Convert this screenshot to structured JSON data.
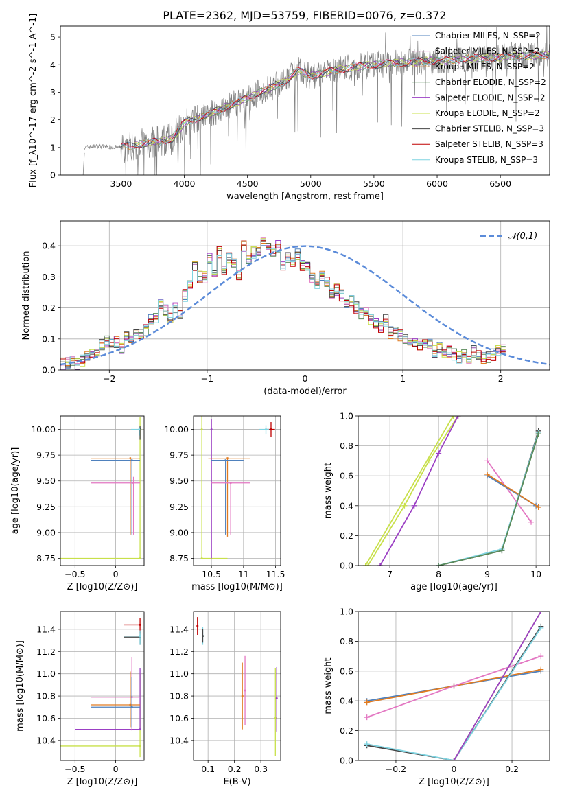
{
  "figure": {
    "title": "PLATE=2362, MJD=53759, FIBERID=0076, z=0.372",
    "colors": {
      "chabrier_miles": "#4f81bd",
      "salpeter_miles": "#e377c2",
      "kroupa_miles": "#e07b20",
      "chabrier_elodie": "#5a8a5a",
      "salpeter_elodie": "#9b3fc4",
      "kroupa_elodie": "#c8e04a",
      "chabrier_stelib": "#444444",
      "salpeter_stelib": "#c00000",
      "kroupa_stelib": "#7fd3e0",
      "gaussian": "#5b8bd9",
      "observed": "#808080"
    }
  },
  "chart_data": [
    {
      "id": "spectrum",
      "type": "line",
      "xlabel": "wavelength [Angstrom, rest frame]",
      "ylabel": "Flux [f_λ10^-17 erg cm^-2 s^-1 A^-1]",
      "xlim": [
        3020,
        6890
      ],
      "ylim": [
        0,
        5.4
      ],
      "xticks": [
        3500,
        4000,
        4500,
        5000,
        5500,
        6000,
        6500
      ],
      "yticks": [
        0,
        1,
        2,
        3,
        4,
        5
      ],
      "grid": false,
      "legend_position": "top-right",
      "legend": [
        "Chabrier MILES, N_SSP=2",
        "Salpeter MILES, N_SSP=2",
        "Kroupa MILES, N_SSP=2",
        "Chabrier ELODIE, N_SSP=2",
        "Salpeter ELODIE, N_SSP=2",
        "Kroupa ELODIE, N_SSP=2",
        "Chabrier STELIB, N_SSP=3",
        "Salpeter STELIB, N_SSP=3",
        "Kroupa STELIB, N_SSP=3"
      ],
      "model_continuum": {
        "x": [
          3210,
          3300,
          3500,
          3700,
          3900,
          4000,
          4200,
          4400,
          4600,
          4800,
          4900,
          5000,
          5200,
          5400,
          5600,
          5800,
          6000,
          6200,
          6400,
          6600,
          6890
        ],
        "y": [
          1.0,
          1.05,
          1.0,
          1.15,
          1.3,
          1.9,
          2.2,
          2.6,
          3.0,
          3.4,
          3.8,
          3.6,
          3.8,
          3.95,
          4.05,
          4.1,
          4.15,
          4.2,
          4.25,
          4.3,
          4.35
        ]
      }
    },
    {
      "id": "residuals",
      "type": "line",
      "xlabel": "(data-model)/error",
      "ylabel": "Normed distribution",
      "xlim": [
        -2.5,
        2.5
      ],
      "ylim": [
        0,
        0.48
      ],
      "xticks": [
        -2,
        -1,
        0,
        1,
        2
      ],
      "yticks": [
        0.0,
        0.1,
        0.2,
        0.3,
        0.4
      ],
      "grid": true,
      "legend_position": "top-right",
      "legend": [
        "𝒩(0,1)"
      ],
      "bin_width": 0.1,
      "hist_base": [
        0.02,
        0.025,
        0.03,
        0.02,
        0.03,
        0.04,
        0.05,
        0.06,
        0.08,
        0.09,
        0.08,
        0.09,
        0.07,
        0.11,
        0.1,
        0.12,
        0.12,
        0.13,
        0.16,
        0.17,
        0.21,
        0.19,
        0.17,
        0.2,
        0.18,
        0.24,
        0.28,
        0.33,
        0.3,
        0.3,
        0.36,
        0.31,
        0.38,
        0.32,
        0.36,
        0.34,
        0.31,
        0.4,
        0.36,
        0.38,
        0.38,
        0.41,
        0.39,
        0.38,
        0.4,
        0.34,
        0.36,
        0.35,
        0.37,
        0.34,
        0.33,
        0.3,
        0.28,
        0.3,
        0.28,
        0.25,
        0.26,
        0.24,
        0.22,
        0.22,
        0.2,
        0.18,
        0.19,
        0.16,
        0.15,
        0.14,
        0.16,
        0.12,
        0.12,
        0.11,
        0.1,
        0.1,
        0.09,
        0.08,
        0.09,
        0.08,
        0.06,
        0.07,
        0.06,
        0.06,
        0.05,
        0.04,
        0.05,
        0.04,
        0.06,
        0.05,
        0.04,
        0.04,
        0.05,
        0.06,
        0.07
      ]
    },
    {
      "id": "age_vs_Z",
      "type": "scatter",
      "xlabel": "Z [log10(Z/Z⊙)]",
      "ylabel": "age [log10(age/yr)]",
      "xlim": [
        -0.68,
        0.35
      ],
      "ylim": [
        8.68,
        10.13
      ],
      "xticks": [
        -0.5,
        0.0
      ],
      "yticks": [
        8.75,
        9.0,
        9.25,
        9.5,
        9.75,
        10.0
      ],
      "grid": true,
      "points": [
        {
          "series": "kroupa_elodie",
          "x": 0.3,
          "y": 10.0,
          "xerr": [
            0.0,
            0.02
          ],
          "yerr": [
            1.25,
            0.12
          ]
        },
        {
          "series": "kroupa_elodie",
          "x": 0.3,
          "y": 8.75,
          "xerr": [
            0.98,
            0.0
          ],
          "yerr": [
            0.0,
            0.0
          ]
        },
        {
          "series": "chabrier_miles",
          "x": 0.2,
          "y": 9.7,
          "xerr": [
            0.5,
            0.1
          ],
          "yerr": [
            0.72,
            0.0
          ]
        },
        {
          "series": "kroupa_miles",
          "x": 0.18,
          "y": 9.72,
          "xerr": [
            0.48,
            0.12
          ],
          "yerr": [
            0.74,
            0.0
          ]
        },
        {
          "series": "salpeter_miles",
          "x": 0.22,
          "y": 9.48,
          "xerr": [
            0.52,
            0.08
          ],
          "yerr": [
            0.5,
            0.06
          ]
        },
        {
          "series": "chabrier_stelib",
          "x": 0.3,
          "y": 10.0,
          "xerr": [
            0.01,
            0.01
          ],
          "yerr": [
            0.1,
            0.03
          ]
        },
        {
          "series": "kroupa_stelib",
          "x": 0.29,
          "y": 10.0,
          "xerr": [
            0.1,
            0.0
          ],
          "yerr": [
            0.06,
            0.02
          ]
        }
      ]
    },
    {
      "id": "age_vs_mass",
      "type": "scatter",
      "xlabel": "mass [log10(M/M⊙)]",
      "ylabel": "",
      "xlim": [
        10.22,
        11.58
      ],
      "ylim": [
        8.68,
        10.13
      ],
      "xticks": [
        10.5,
        11.0,
        11.5
      ],
      "yticks": [
        8.75,
        9.0,
        9.25,
        9.5,
        9.75,
        10.0
      ],
      "grid": true,
      "points": [
        {
          "series": "kroupa_elodie",
          "x": 10.35,
          "y": 10.0,
          "xerr": [
            0.0,
            0.0
          ],
          "yerr": [
            1.25,
            0.13
          ]
        },
        {
          "series": "kroupa_elodie",
          "x": 10.35,
          "y": 8.75,
          "xerr": [
            0.0,
            0.4
          ],
          "yerr": [
            0.0,
            0.0
          ]
        },
        {
          "series": "salpeter_elodie",
          "x": 10.5,
          "y": 10.0,
          "xerr": [
            0.0,
            0.0
          ],
          "yerr": [
            1.25,
            0.1
          ]
        },
        {
          "series": "kroupa_miles",
          "x": 10.75,
          "y": 9.72,
          "xerr": [
            0.3,
            0.35
          ],
          "yerr": [
            0.76,
            0.0
          ]
        },
        {
          "series": "chabrier_miles",
          "x": 10.72,
          "y": 9.7,
          "xerr": [
            0.22,
            0.28
          ],
          "yerr": [
            0.72,
            0.0
          ]
        },
        {
          "series": "salpeter_miles",
          "x": 10.8,
          "y": 9.48,
          "xerr": [
            0.3,
            0.3
          ],
          "yerr": [
            0.5,
            0.0
          ]
        },
        {
          "series": "salpeter_stelib",
          "x": 11.43,
          "y": 10.0,
          "xerr": [
            0.08,
            0.06
          ],
          "yerr": [
            0.07,
            0.07
          ]
        },
        {
          "series": "kroupa_stelib",
          "x": 11.35,
          "y": 10.0,
          "xerr": [
            0.1,
            0.05
          ],
          "yerr": [
            0.05,
            0.04
          ]
        }
      ]
    },
    {
      "id": "mass_weight_vs_age",
      "type": "line",
      "xlabel": "age [log10(age/yr)]",
      "ylabel": "mass weight",
      "xlim": [
        6.35,
        10.28
      ],
      "ylim": [
        0.0,
        1.0
      ],
      "xticks": [
        7,
        8,
        9,
        10
      ],
      "yticks": [
        0.0,
        0.2,
        0.4,
        0.6,
        0.8,
        1.0
      ],
      "grid": true,
      "series": [
        {
          "key": "kroupa_elodie",
          "x": [
            6.55,
            7.3,
            7.8,
            8.4
          ],
          "y": [
            0.0,
            0.4,
            0.7,
            1.0
          ]
        },
        {
          "key": "salpeter_elodie",
          "x": [
            6.8,
            7.5,
            8.0,
            8.4
          ],
          "y": [
            0.0,
            0.4,
            0.75,
            1.0
          ]
        },
        {
          "key": "kroupa_elodie",
          "x": [
            6.5,
            8.3
          ],
          "y": [
            0.0,
            1.0
          ]
        },
        {
          "key": "salpeter_miles",
          "x": [
            9.0,
            9.9
          ],
          "y": [
            0.7,
            0.29
          ]
        },
        {
          "key": "chabrier_miles",
          "x": [
            9.0,
            10.0
          ],
          "y": [
            0.6,
            0.4
          ]
        },
        {
          "key": "kroupa_miles",
          "x": [
            9.0,
            10.05
          ],
          "y": [
            0.61,
            0.39
          ]
        },
        {
          "key": "chabrier_stelib",
          "x": [
            8.0,
            9.3,
            10.05
          ],
          "y": [
            0.0,
            0.1,
            0.9
          ]
        },
        {
          "key": "kroupa_stelib",
          "x": [
            8.0,
            9.3,
            10.05
          ],
          "y": [
            0.0,
            0.11,
            0.89
          ]
        },
        {
          "key": "chabrier_elodie",
          "x": [
            8.0,
            9.3,
            10.05
          ],
          "y": [
            0.0,
            0.1,
            0.88
          ]
        }
      ]
    },
    {
      "id": "mass_vs_Z",
      "type": "scatter",
      "xlabel": "Z [log10(Z/Z⊙)]",
      "ylabel": "mass [log10(M/M⊙)]",
      "xlim": [
        -0.68,
        0.35
      ],
      "ylim": [
        10.22,
        11.56
      ],
      "xticks": [
        -0.5,
        0.0
      ],
      "yticks": [
        10.4,
        10.6,
        10.8,
        11.0,
        11.2,
        11.4
      ],
      "grid": true,
      "points": [
        {
          "series": "salpeter_stelib",
          "x": 0.3,
          "y": 11.44,
          "xerr": [
            0.2,
            0.0
          ],
          "yerr": [
            0.08,
            0.06
          ]
        },
        {
          "series": "chabrier_stelib",
          "x": 0.3,
          "y": 11.33,
          "xerr": [
            0.2,
            0.0
          ],
          "yerr": [
            0.07,
            0.05
          ]
        },
        {
          "series": "kroupa_stelib",
          "x": 0.3,
          "y": 11.34,
          "xerr": [
            0.2,
            0.0
          ],
          "yerr": [
            0.08,
            0.05
          ]
        },
        {
          "series": "kroupa_elodie",
          "x": 0.3,
          "y": 10.35,
          "xerr": [
            0.98,
            0.0
          ],
          "yerr": [
            0.1,
            0.65
          ]
        },
        {
          "series": "salpeter_elodie",
          "x": 0.3,
          "y": 10.5,
          "xerr": [
            0.8,
            0.0
          ],
          "yerr": [
            0.0,
            0.55
          ]
        },
        {
          "series": "salpeter_miles",
          "x": 0.2,
          "y": 10.79,
          "xerr": [
            0.5,
            0.1
          ],
          "yerr": [
            0.3,
            0.36
          ]
        },
        {
          "series": "kroupa_miles",
          "x": 0.18,
          "y": 10.72,
          "xerr": [
            0.48,
            0.12
          ],
          "yerr": [
            0.2,
            0.3
          ]
        },
        {
          "series": "chabrier_miles",
          "x": 0.2,
          "y": 10.7,
          "xerr": [
            0.5,
            0.1
          ],
          "yerr": [
            0.18,
            0.27
          ]
        }
      ]
    },
    {
      "id": "mass_vs_ebv",
      "type": "scatter",
      "xlabel": "E(B-V)",
      "ylabel": "",
      "xlim": [
        0.045,
        0.375
      ],
      "ylim": [
        10.22,
        11.56
      ],
      "xticks": [
        0.1,
        0.2,
        0.3
      ],
      "yticks": [
        10.4,
        10.6,
        10.8,
        11.0,
        11.2,
        11.4
      ],
      "grid": true,
      "points": [
        {
          "series": "salpeter_stelib",
          "x": 0.06,
          "y": 11.43,
          "yerr": [
            0.08,
            0.08
          ]
        },
        {
          "series": "kroupa_stelib",
          "x": 0.08,
          "y": 11.34,
          "yerr": [
            0.08,
            0.08
          ]
        },
        {
          "series": "chabrier_stelib",
          "x": 0.08,
          "y": 11.34,
          "yerr": [
            0.06,
            0.06
          ]
        },
        {
          "series": "salpeter_miles",
          "x": 0.24,
          "y": 10.85,
          "yerr": [
            0.31,
            0.31
          ]
        },
        {
          "series": "kroupa_miles",
          "x": 0.23,
          "y": 10.8,
          "yerr": [
            0.3,
            0.3
          ]
        },
        {
          "series": "kroupa_elodie",
          "x": 0.355,
          "y": 10.6,
          "yerr": [
            0.34,
            0.45
          ]
        },
        {
          "series": "salpeter_elodie",
          "x": 0.36,
          "y": 10.78,
          "yerr": [
            0.3,
            0.28
          ]
        }
      ]
    },
    {
      "id": "mass_weight_vs_Z",
      "type": "line",
      "xlabel": "Z [log10(Z/Z⊙)]",
      "ylabel": "mass weight",
      "xlim": [
        -0.33,
        0.33
      ],
      "ylim": [
        0.0,
        1.0
      ],
      "xticks": [
        -0.2,
        0.0,
        0.2
      ],
      "yticks": [
        0.0,
        0.2,
        0.4,
        0.6,
        0.8,
        1.0
      ],
      "grid": true,
      "series": [
        {
          "key": "chabrier_miles",
          "x": [
            -0.3,
            0.0,
            0.3
          ],
          "y": [
            0.4,
            0.5,
            0.6
          ]
        },
        {
          "key": "kroupa_miles",
          "x": [
            -0.3,
            0.0,
            0.3
          ],
          "y": [
            0.39,
            0.5,
            0.61
          ]
        },
        {
          "key": "salpeter_miles",
          "x": [
            -0.3,
            0.0,
            0.3
          ],
          "y": [
            0.29,
            0.5,
            0.7
          ]
        },
        {
          "key": "chabrier_stelib",
          "x": [
            -0.3,
            0.0,
            0.3
          ],
          "y": [
            0.1,
            0.0,
            0.9
          ]
        },
        {
          "key": "kroupa_stelib",
          "x": [
            -0.3,
            0.0,
            0.3
          ],
          "y": [
            0.11,
            0.0,
            0.89
          ]
        },
        {
          "key": "kroupa_elodie",
          "x": [
            0.0,
            0.3
          ],
          "y": [
            0.0,
            1.0
          ]
        },
        {
          "key": "salpeter_elodie",
          "x": [
            0.0,
            0.3
          ],
          "y": [
            0.0,
            1.0
          ]
        }
      ]
    }
  ]
}
